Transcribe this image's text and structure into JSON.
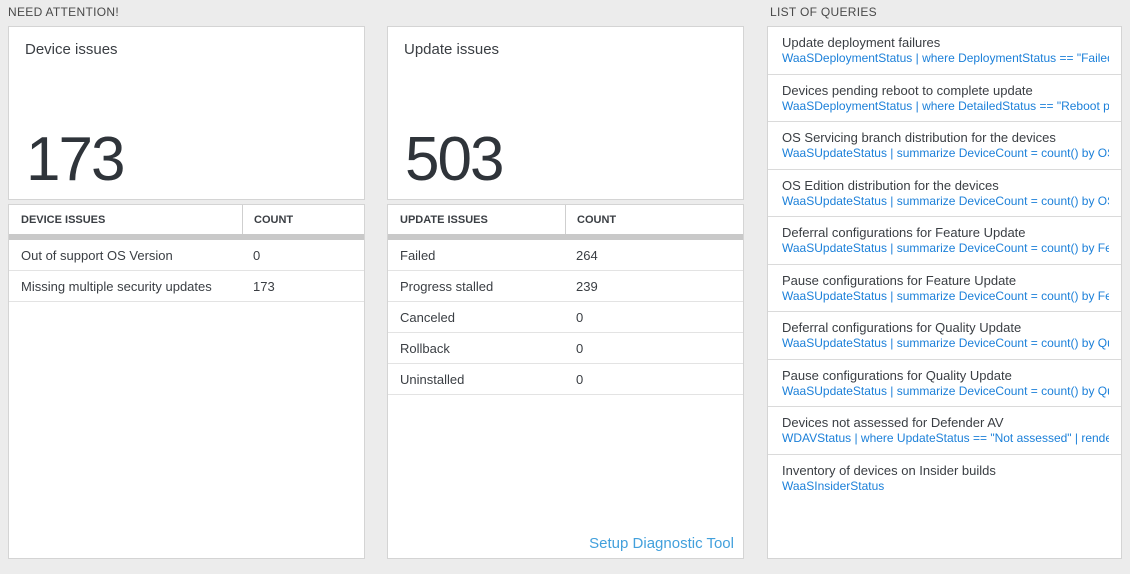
{
  "colors": {
    "page_bg": "#ececec",
    "query_blue": "#1c80d9",
    "link_blue": "#42a0dc",
    "big_number": "#2f343a"
  },
  "need_attention": {
    "section_title": "NEED ATTENTION!",
    "device_card": {
      "label": "Device issues",
      "value": "173"
    },
    "device_table": {
      "col1_header": "DEVICE ISSUES",
      "col2_header": "COUNT",
      "rows": [
        {
          "label": "Out of support OS Version",
          "count": "0"
        },
        {
          "label": "Missing multiple security updates",
          "count": "173"
        }
      ]
    },
    "update_card": {
      "label": "Update issues",
      "value": "503"
    },
    "update_table": {
      "col1_header": "UPDATE ISSUES",
      "col2_header": "COUNT",
      "rows": [
        {
          "label": "Failed",
          "count": "264"
        },
        {
          "label": "Progress stalled",
          "count": "239"
        },
        {
          "label": "Canceled",
          "count": "0"
        },
        {
          "label": "Rollback",
          "count": "0"
        },
        {
          "label": "Uninstalled",
          "count": "0"
        }
      ],
      "footer_link": "Setup Diagnostic Tool"
    }
  },
  "queries": {
    "section_title": "LIST OF QUERIES",
    "items": [
      {
        "title": "Update deployment failures",
        "query": "WaaSDeploymentStatus | where DeploymentStatus == \"Failed\" |..."
      },
      {
        "title": "Devices pending reboot to complete update",
        "query": "WaaSDeploymentStatus | where DetailedStatus == \"Reboot pend..."
      },
      {
        "title": "OS Servicing branch distribution for the devices",
        "query": "WaaSUpdateStatus | summarize DeviceCount = count() by OSSer..."
      },
      {
        "title": "OS Edition distribution for the devices",
        "query": "WaaSUpdateStatus | summarize DeviceCount = count() by OSEdit..."
      },
      {
        "title": "Deferral configurations for Feature Update",
        "query": "WaaSUpdateStatus | summarize DeviceCount = count() by Featur..."
      },
      {
        "title": "Pause configurations for Feature Update",
        "query": "WaaSUpdateStatus | summarize DeviceCount = count() by Featur..."
      },
      {
        "title": "Deferral configurations for Quality Update",
        "query": "WaaSUpdateStatus | summarize DeviceCount = count() by Qualit..."
      },
      {
        "title": "Pause configurations for Quality Update",
        "query": "WaaSUpdateStatus | summarize DeviceCount = count() by Qualit..."
      },
      {
        "title": "Devices not assessed for Defender AV",
        "query": "WDAVStatus | where UpdateStatus == \"Not assessed\" | render ta..."
      },
      {
        "title": "Inventory of devices on Insider builds",
        "query": "WaaSInsiderStatus"
      }
    ]
  }
}
